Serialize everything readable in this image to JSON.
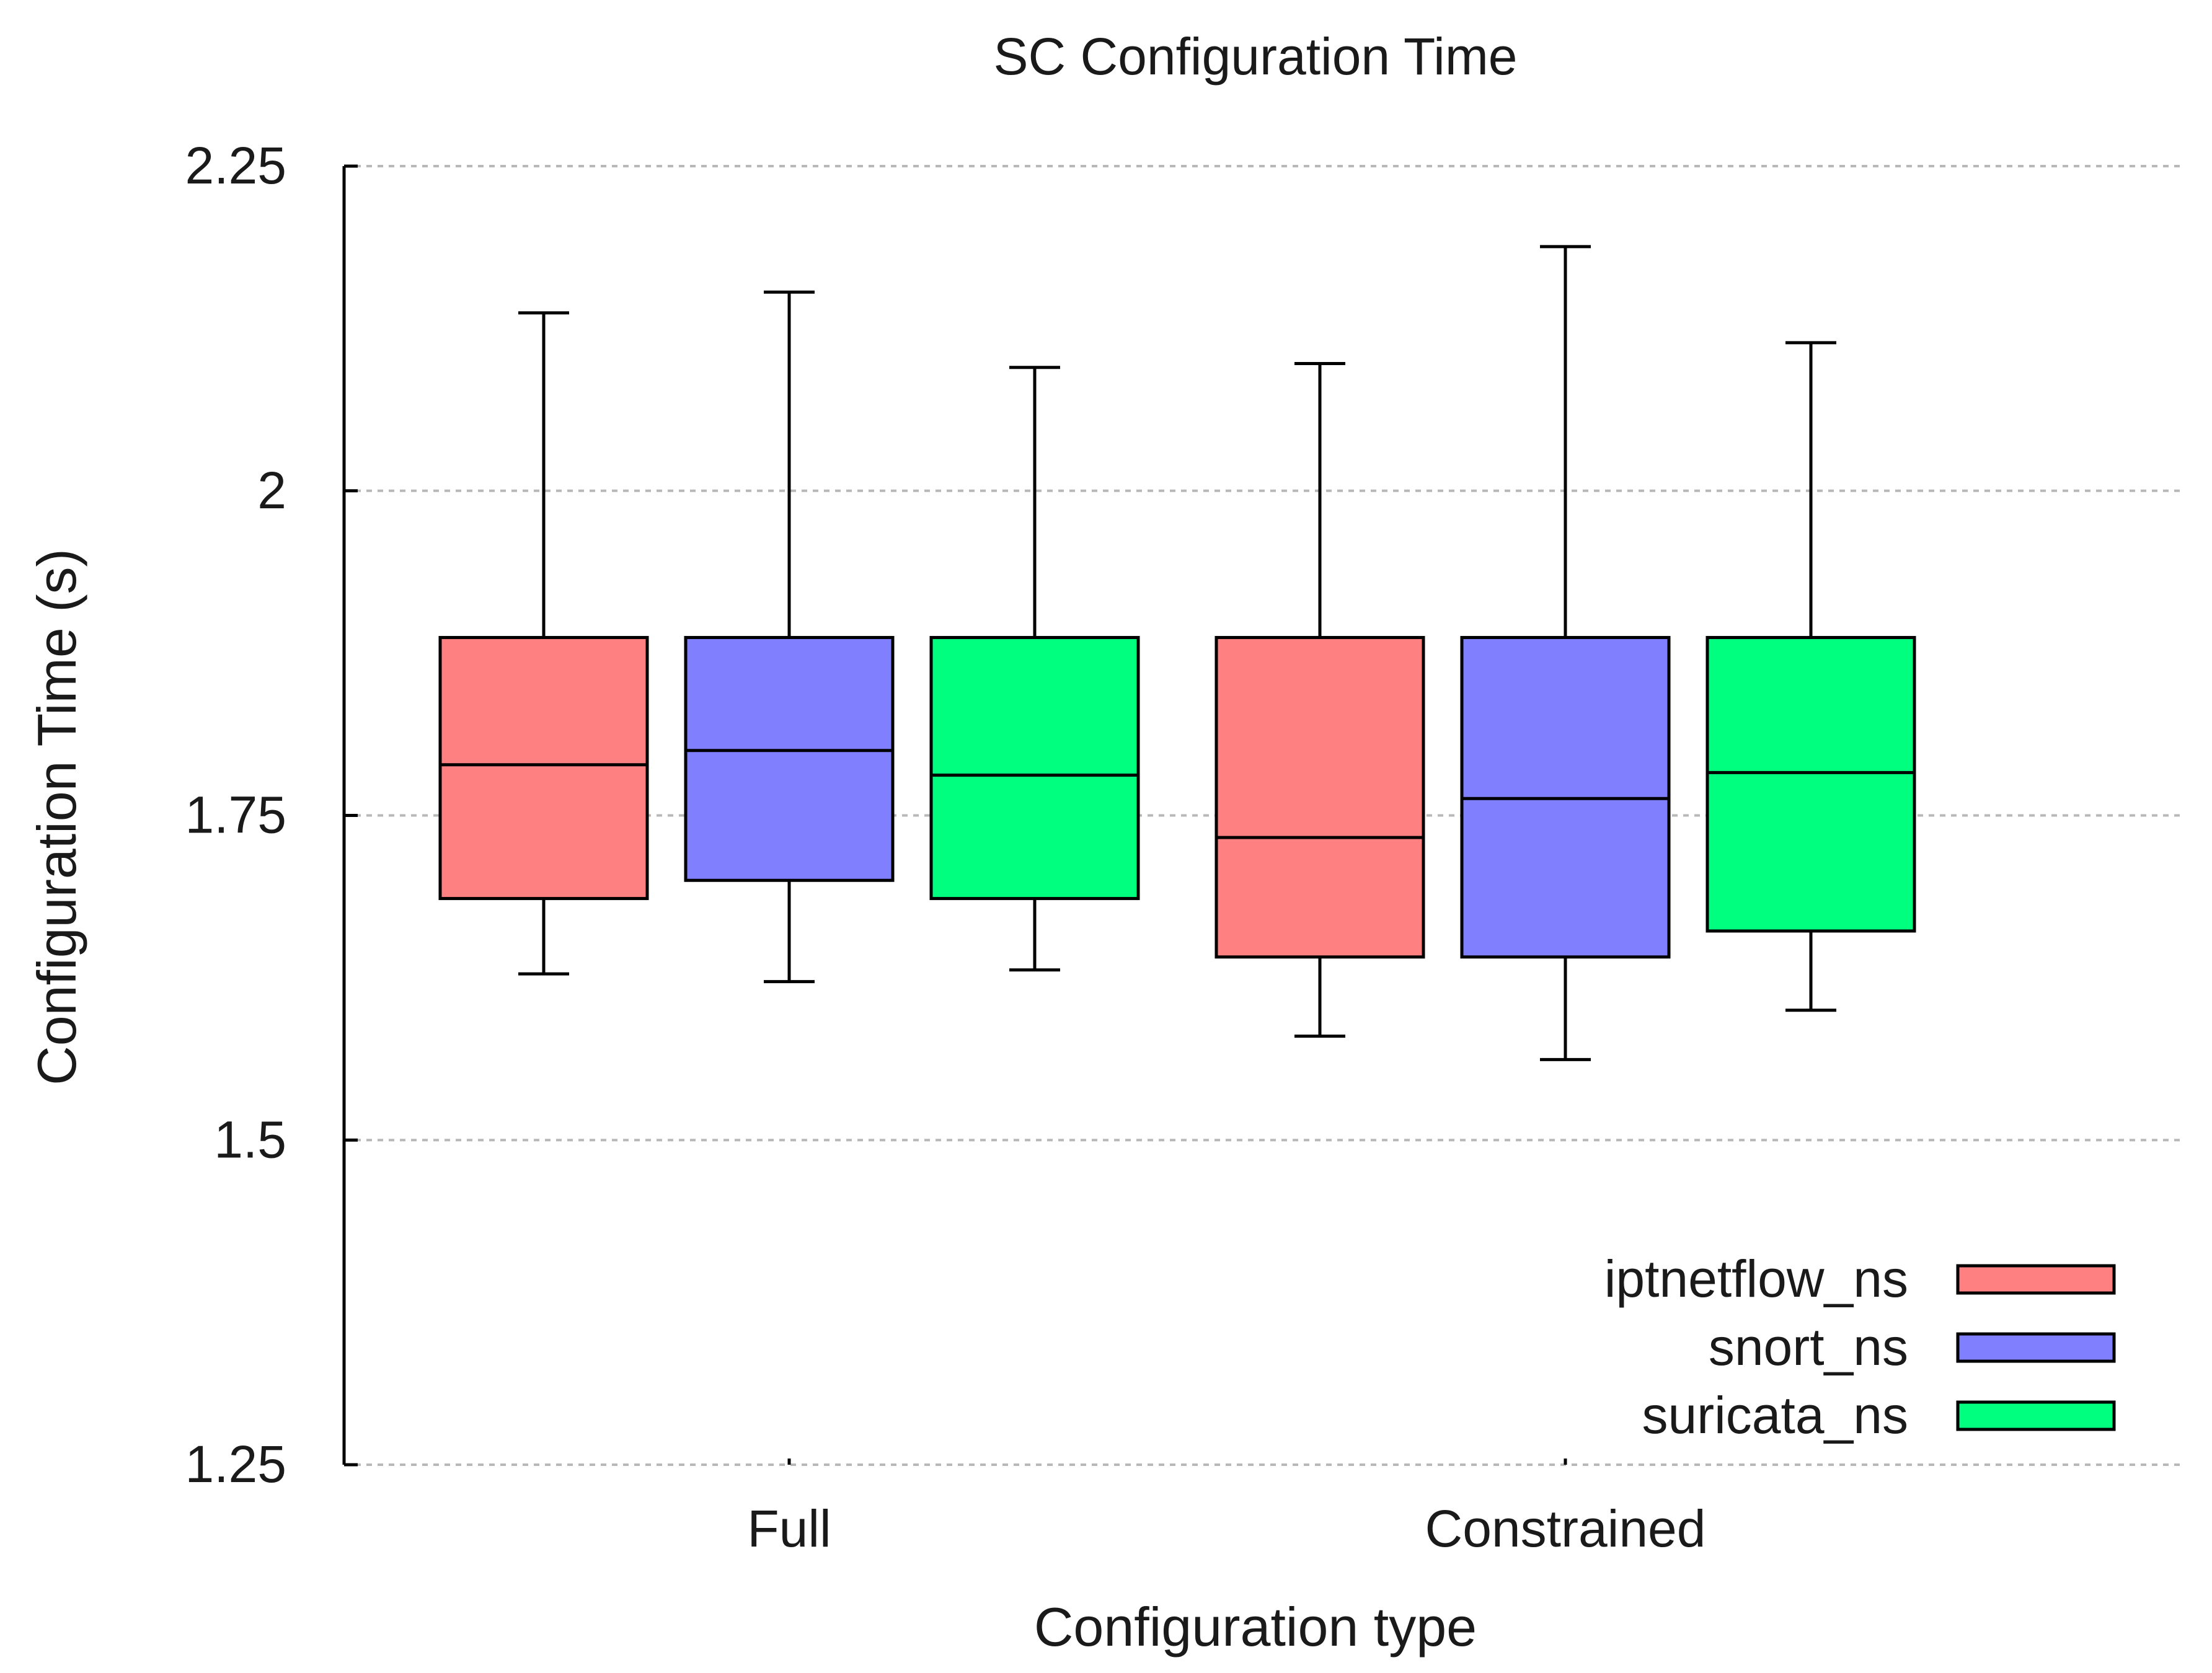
{
  "chart_data": {
    "type": "boxplot",
    "title": "SC Configuration Time",
    "xlabel": "Configuration type",
    "ylabel": "Configuration Time (s)",
    "ylim": [
      1.25,
      2.25
    ],
    "yticks": [
      1.25,
      1.5,
      1.75,
      2,
      2.25
    ],
    "ytick_labels": [
      "1.25",
      "1.5",
      "1.75",
      "2",
      "2.25"
    ],
    "grid": true,
    "legend_position": "bottom-right",
    "categories": [
      "Full",
      "Constrained"
    ],
    "series": [
      {
        "name": "iptnetflow_ns",
        "color": "#ff8080",
        "boxes": [
          {
            "min": 1.628,
            "q1": 1.686,
            "median": 1.789,
            "q3": 1.887,
            "max": 2.137
          },
          {
            "min": 1.58,
            "q1": 1.641,
            "median": 1.733,
            "q3": 1.887,
            "max": 2.098
          }
        ]
      },
      {
        "name": "snort_ns",
        "color": "#8080ff",
        "boxes": [
          {
            "min": 1.622,
            "q1": 1.7,
            "median": 1.8,
            "q3": 1.887,
            "max": 2.153
          },
          {
            "min": 1.562,
            "q1": 1.641,
            "median": 1.763,
            "q3": 1.887,
            "max": 2.188
          }
        ]
      },
      {
        "name": "suricata_ns",
        "color": "#00ff7f",
        "boxes": [
          {
            "min": 1.631,
            "q1": 1.686,
            "median": 1.781,
            "q3": 1.887,
            "max": 2.095
          },
          {
            "min": 1.6,
            "q1": 1.661,
            "median": 1.783,
            "q3": 1.887,
            "max": 2.114
          }
        ]
      }
    ]
  }
}
